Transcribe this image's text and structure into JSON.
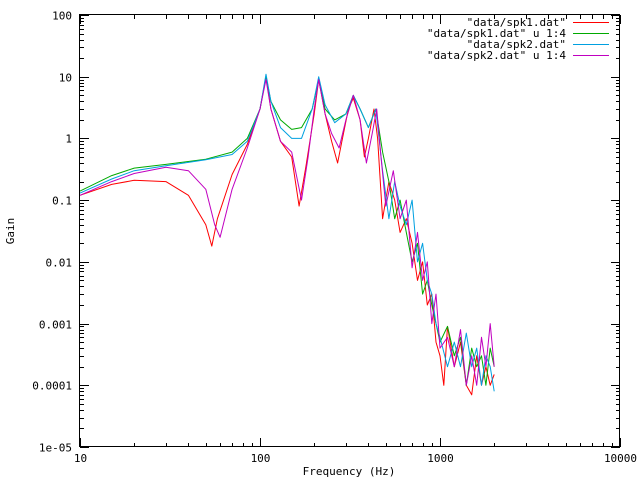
{
  "chart_data": {
    "type": "line",
    "title": "",
    "xlabel": "Frequency (Hz)",
    "ylabel": "Gain",
    "x_scale": "log",
    "y_scale": "log",
    "xlim": [
      10,
      10000
    ],
    "ylim": [
      1e-05,
      100
    ],
    "grid": false,
    "legend_position": "top-right",
    "x_ticks": [
      {
        "value": 10,
        "label": "10"
      },
      {
        "value": 100,
        "label": "100"
      },
      {
        "value": 1000,
        "label": "1000"
      },
      {
        "value": 10000,
        "label": "10000"
      }
    ],
    "y_ticks": [
      {
        "value": 100,
        "label": "100"
      },
      {
        "value": 10,
        "label": "10"
      },
      {
        "value": 1,
        "label": "1"
      },
      {
        "value": 0.1,
        "label": "0.1"
      },
      {
        "value": 0.01,
        "label": "0.01"
      },
      {
        "value": 0.001,
        "label": "0.001"
      },
      {
        "value": 0.0001,
        "label": "0.0001"
      },
      {
        "value": 1e-05,
        "label": "1e-05"
      }
    ],
    "series": [
      {
        "name": "\"data/spk1.dat\"",
        "color": "#ff0000",
        "points": [
          [
            10,
            0.12
          ],
          [
            15,
            0.18
          ],
          [
            20,
            0.21
          ],
          [
            30,
            0.2
          ],
          [
            40,
            0.12
          ],
          [
            50,
            0.04
          ],
          [
            54,
            0.018
          ],
          [
            58,
            0.05
          ],
          [
            70,
            0.26
          ],
          [
            85,
            0.8
          ],
          [
            100,
            3
          ],
          [
            108,
            10
          ],
          [
            115,
            3
          ],
          [
            130,
            0.9
          ],
          [
            150,
            0.5
          ],
          [
            165,
            0.08
          ],
          [
            180,
            0.35
          ],
          [
            200,
            2.5
          ],
          [
            212,
            9
          ],
          [
            230,
            2.5
          ],
          [
            250,
            0.9
          ],
          [
            270,
            0.4
          ],
          [
            285,
            0.9
          ],
          [
            310,
            3
          ],
          [
            330,
            4.5
          ],
          [
            360,
            2
          ],
          [
            380,
            0.5
          ],
          [
            400,
            1
          ],
          [
            430,
            3
          ],
          [
            450,
            1
          ],
          [
            480,
            0.05
          ],
          [
            520,
            0.2
          ],
          [
            560,
            0.1
          ],
          [
            600,
            0.03
          ],
          [
            650,
            0.05
          ],
          [
            700,
            0.02
          ],
          [
            750,
            0.005
          ],
          [
            800,
            0.01
          ],
          [
            850,
            0.002
          ],
          [
            900,
            0.003
          ],
          [
            950,
            0.0005
          ],
          [
            1000,
            0.0003
          ],
          [
            1050,
            0.0001
          ],
          [
            1100,
            0.0009
          ],
          [
            1200,
            0.0002
          ],
          [
            1300,
            0.0005
          ],
          [
            1400,
            0.0001
          ],
          [
            1500,
            7e-05
          ],
          [
            1600,
            0.0003
          ],
          [
            1700,
            0.0001
          ],
          [
            1800,
            0.0002
          ],
          [
            1900,
            0.0001
          ],
          [
            2000,
            0.00015
          ]
        ]
      },
      {
        "name": "\"data/spk1.dat\" u 1:4",
        "color": "#00aa00",
        "points": [
          [
            10,
            0.14
          ],
          [
            15,
            0.25
          ],
          [
            20,
            0.33
          ],
          [
            30,
            0.38
          ],
          [
            50,
            0.46
          ],
          [
            70,
            0.6
          ],
          [
            85,
            1
          ],
          [
            100,
            3
          ],
          [
            108,
            10
          ],
          [
            115,
            4
          ],
          [
            130,
            2
          ],
          [
            150,
            1.4
          ],
          [
            170,
            1.5
          ],
          [
            195,
            3
          ],
          [
            212,
            9
          ],
          [
            230,
            3
          ],
          [
            260,
            2
          ],
          [
            300,
            2.5
          ],
          [
            330,
            5
          ],
          [
            360,
            3
          ],
          [
            400,
            1.5
          ],
          [
            440,
            3
          ],
          [
            480,
            0.6
          ],
          [
            520,
            0.2
          ],
          [
            560,
            0.05
          ],
          [
            600,
            0.1
          ],
          [
            650,
            0.03
          ],
          [
            700,
            0.01
          ],
          [
            750,
            0.02
          ],
          [
            800,
            0.003
          ],
          [
            850,
            0.005
          ],
          [
            900,
            0.002
          ],
          [
            950,
            0.001
          ],
          [
            1000,
            0.0005
          ],
          [
            1100,
            0.0009
          ],
          [
            1200,
            0.0003
          ],
          [
            1300,
            0.0006
          ],
          [
            1400,
            0.0001
          ],
          [
            1500,
            0.0004
          ],
          [
            1600,
            0.0002
          ],
          [
            1700,
            0.0003
          ],
          [
            1800,
            0.0001
          ],
          [
            1900,
            0.0004
          ],
          [
            2000,
            0.0002
          ]
        ]
      },
      {
        "name": "\"data/spk2.dat\"",
        "color": "#00a0e0",
        "points": [
          [
            10,
            0.13
          ],
          [
            15,
            0.22
          ],
          [
            20,
            0.3
          ],
          [
            30,
            0.36
          ],
          [
            50,
            0.45
          ],
          [
            70,
            0.55
          ],
          [
            85,
            0.9
          ],
          [
            100,
            3
          ],
          [
            108,
            11
          ],
          [
            115,
            4
          ],
          [
            130,
            1.5
          ],
          [
            150,
            1
          ],
          [
            170,
            1
          ],
          [
            195,
            3
          ],
          [
            212,
            10
          ],
          [
            230,
            3.5
          ],
          [
            260,
            1.8
          ],
          [
            300,
            2.5
          ],
          [
            330,
            5
          ],
          [
            360,
            3
          ],
          [
            400,
            1.5
          ],
          [
            440,
            3
          ],
          [
            480,
            0.3
          ],
          [
            520,
            0.05
          ],
          [
            560,
            0.2
          ],
          [
            600,
            0.08
          ],
          [
            650,
            0.04
          ],
          [
            700,
            0.1
          ],
          [
            750,
            0.01
          ],
          [
            800,
            0.02
          ],
          [
            850,
            0.005
          ],
          [
            900,
            0.003
          ],
          [
            950,
            0.001
          ],
          [
            1000,
            0.0006
          ],
          [
            1100,
            0.0002
          ],
          [
            1200,
            0.0005
          ],
          [
            1300,
            0.0002
          ],
          [
            1400,
            0.0007
          ],
          [
            1500,
            0.0002
          ],
          [
            1600,
            0.0004
          ],
          [
            1700,
            0.0001
          ],
          [
            1800,
            0.0003
          ],
          [
            1900,
            0.0002
          ],
          [
            2000,
            8e-05
          ]
        ]
      },
      {
        "name": "\"data/spk2.dat\" u 1:4",
        "color": "#c000c0",
        "points": [
          [
            10,
            0.12
          ],
          [
            15,
            0.2
          ],
          [
            20,
            0.27
          ],
          [
            30,
            0.34
          ],
          [
            40,
            0.3
          ],
          [
            50,
            0.15
          ],
          [
            56,
            0.04
          ],
          [
            60,
            0.025
          ],
          [
            70,
            0.15
          ],
          [
            85,
            0.7
          ],
          [
            100,
            3
          ],
          [
            108,
            9
          ],
          [
            115,
            3
          ],
          [
            130,
            0.9
          ],
          [
            150,
            0.6
          ],
          [
            170,
            0.1
          ],
          [
            185,
            0.5
          ],
          [
            200,
            3
          ],
          [
            212,
            9
          ],
          [
            230,
            2.5
          ],
          [
            250,
            1.2
          ],
          [
            275,
            0.7
          ],
          [
            300,
            2
          ],
          [
            330,
            5
          ],
          [
            360,
            2
          ],
          [
            390,
            0.4
          ],
          [
            420,
            1.2
          ],
          [
            445,
            3
          ],
          [
            470,
            0.5
          ],
          [
            500,
            0.08
          ],
          [
            550,
            0.3
          ],
          [
            600,
            0.05
          ],
          [
            650,
            0.1
          ],
          [
            700,
            0.008
          ],
          [
            750,
            0.03
          ],
          [
            800,
            0.005
          ],
          [
            850,
            0.01
          ],
          [
            900,
            0.001
          ],
          [
            950,
            0.003
          ],
          [
            1000,
            0.0004
          ],
          [
            1100,
            0.0006
          ],
          [
            1200,
            0.0002
          ],
          [
            1300,
            0.0008
          ],
          [
            1400,
            0.0001
          ],
          [
            1500,
            0.0003
          ],
          [
            1600,
            0.0001
          ],
          [
            1700,
            0.0006
          ],
          [
            1800,
            0.0002
          ],
          [
            1900,
            0.001
          ],
          [
            2000,
            0.0002
          ]
        ]
      }
    ]
  }
}
